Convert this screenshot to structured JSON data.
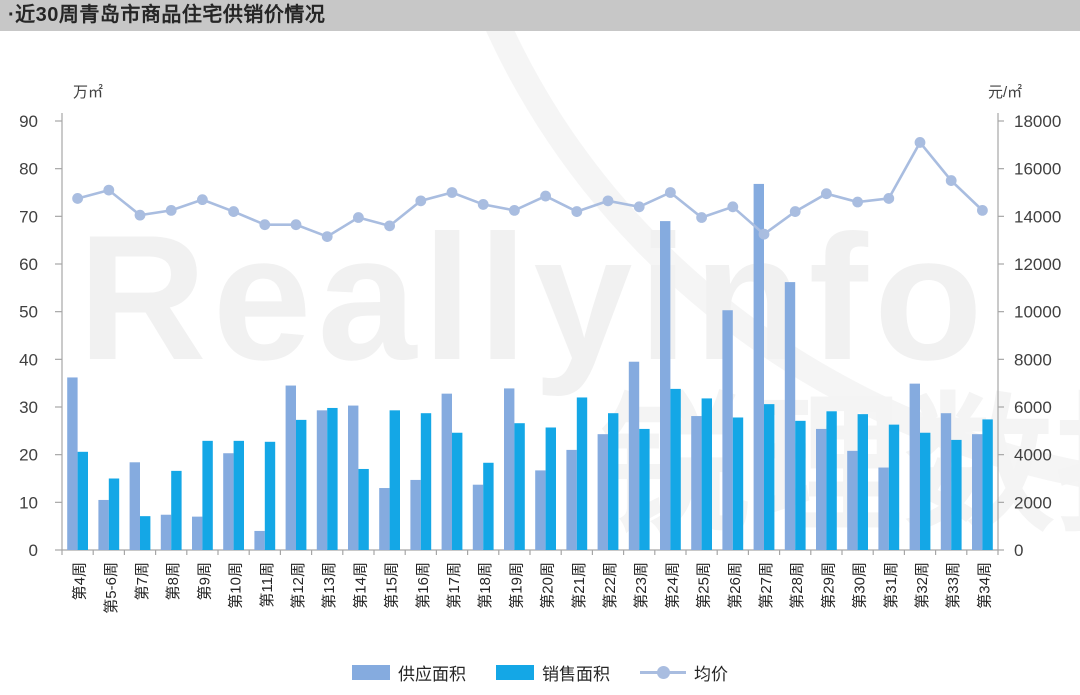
{
  "header": {
    "title": "·近30周青岛市商品住宅供销价情况"
  },
  "watermark": {
    "text": "Reallyinfo",
    "subtext": "锐理数据"
  },
  "chart_data": {
    "type": "bar",
    "subtype": "grouped-bars-with-line",
    "title": "近30周青岛市商品住宅供销价情况",
    "categories": [
      "第4周",
      "第5-6周",
      "第7周",
      "第8周",
      "第9周",
      "第10周",
      "第11周",
      "第12周",
      "第13周",
      "第14周",
      "第15周",
      "第16周",
      "第17周",
      "第18周",
      "第19周",
      "第20周",
      "第21周",
      "第22周",
      "第23周",
      "第24周",
      "第25周",
      "第26周",
      "第27周",
      "第28周",
      "第29周",
      "第30周",
      "第31周",
      "第32周",
      "第33周",
      "第34周"
    ],
    "series": [
      {
        "name": "供应面积",
        "type": "bar",
        "axis": "left",
        "color": "#85abdf",
        "values": [
          36.2,
          10.5,
          18.4,
          7.4,
          7.0,
          20.3,
          4.0,
          34.5,
          29.3,
          30.3,
          13.0,
          14.7,
          32.8,
          13.7,
          33.9,
          16.7,
          21.0,
          24.3,
          39.5,
          69.0,
          28.1,
          50.3,
          76.8,
          56.2,
          25.4,
          20.8,
          17.3,
          34.9,
          28.7,
          24.3
        ]
      },
      {
        "name": "销售面积",
        "type": "bar",
        "axis": "left",
        "color": "#14a7e6",
        "values": [
          20.6,
          15.0,
          7.1,
          16.6,
          22.9,
          22.9,
          22.7,
          27.3,
          29.8,
          17.0,
          29.3,
          28.7,
          24.6,
          18.3,
          26.6,
          25.7,
          32.0,
          28.7,
          25.4,
          33.8,
          31.8,
          27.8,
          30.6,
          27.1,
          29.1,
          28.5,
          26.3,
          24.6,
          23.1,
          27.4
        ]
      },
      {
        "name": "均价",
        "type": "line",
        "axis": "right",
        "color": "#a9bde0",
        "values": [
          14750,
          15100,
          14050,
          14250,
          14700,
          14200,
          13650,
          13650,
          13150,
          13950,
          13600,
          14650,
          15000,
          14500,
          14250,
          14850,
          14200,
          14650,
          14400,
          15000,
          13950,
          14400,
          13250,
          14200,
          14950,
          14600,
          14750,
          17100,
          15500,
          14250
        ]
      }
    ],
    "left_axis": {
      "title": "万㎡",
      "min": 0,
      "max": 90,
      "step": 10,
      "ticks": [
        "0",
        "10",
        "20",
        "30",
        "40",
        "50",
        "60",
        "70",
        "80",
        "90"
      ]
    },
    "right_axis": {
      "title": "元/㎡",
      "min": 0,
      "max": 18000,
      "step": 2000,
      "ticks": [
        "0",
        "2000",
        "4000",
        "6000",
        "8000",
        "10000",
        "12000",
        "14000",
        "16000",
        "18000"
      ]
    },
    "legend_position": "bottom",
    "grid": false,
    "axis_color": "#a6a6a6",
    "tick_label_color": "#404040",
    "x_label_color": "#262626"
  }
}
